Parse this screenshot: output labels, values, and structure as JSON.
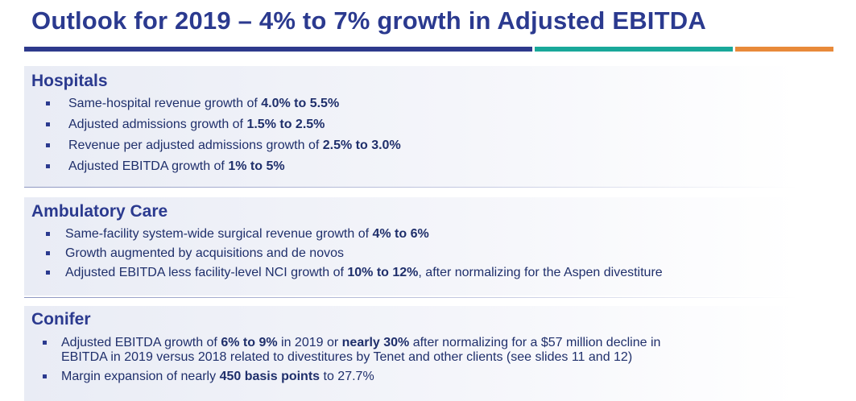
{
  "title": "Outlook for 2019 – 4% to 7% growth in Adjusted EBITDA",
  "colors": {
    "title": "#2b3a8f",
    "bar_navy": "#2e3a8c",
    "bar_teal": "#19a89a",
    "bar_orange": "#e88a3a",
    "body_text": "#1f2f6b"
  },
  "sections": {
    "hospitals": {
      "heading": "Hospitals",
      "items": [
        {
          "text": "Same-hospital revenue growth of ",
          "bold": "4.0% to 5.5%"
        },
        {
          "text": "Adjusted admissions growth of ",
          "bold": "1.5% to 2.5%"
        },
        {
          "text": "Revenue per adjusted admissions growth of ",
          "bold": "2.5% to 3.0%"
        },
        {
          "text": "Adjusted EBITDA growth of ",
          "bold": "1% to 5%"
        }
      ]
    },
    "ambulatory": {
      "heading": "Ambulatory Care",
      "items": [
        {
          "text": "Same-facility system-wide surgical revenue growth of ",
          "bold": "4% to 6%",
          "after": ""
        },
        {
          "text": "Growth augmented by acquisitions and de novos",
          "bold": "",
          "after": ""
        },
        {
          "text": "Adjusted EBITDA less facility-level NCI growth of ",
          "bold": "10% to 12%",
          "after": ", after normalizing for the Aspen divestiture"
        }
      ]
    },
    "conifer": {
      "heading": "Conifer",
      "items": [
        {
          "p1": "Adjusted EBITDA growth of ",
          "b1": "6% to 9%",
          "p2": " in 2019 or ",
          "b2": "nearly 30%",
          "p3": " after normalizing for a $57 million decline in",
          "line2": "EBITDA in 2019 versus 2018 related to divestitures by Tenet and other clients (see slides 11 and 12)"
        },
        {
          "p1": "Margin expansion of nearly ",
          "b1": "450 basis points",
          "p2": " to 27.7%"
        }
      ]
    }
  }
}
